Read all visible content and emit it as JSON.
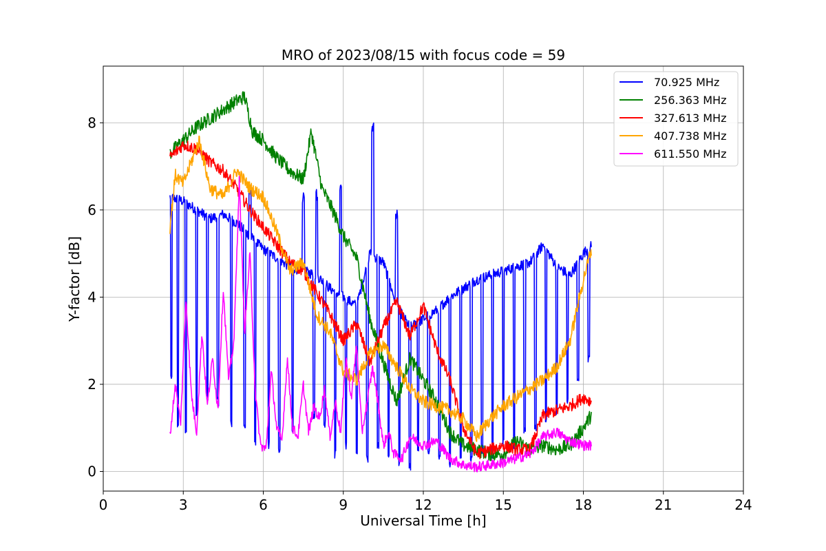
{
  "chart_data": {
    "type": "line",
    "title": "MRO of 2023/08/15 with focus code = 59",
    "xlabel": "Universal Time [h]",
    "ylabel": "Y-factor [dB]",
    "xlim": [
      0,
      24
    ],
    "ylim": [
      -0.45,
      9.3
    ],
    "xticks": [
      0,
      3,
      6,
      9,
      12,
      15,
      18,
      21,
      24
    ],
    "yticks": [
      0,
      2,
      4,
      6,
      8
    ],
    "grid": true,
    "legend_position": "top-right",
    "series": [
      {
        "name": "70.925 MHz",
        "color": "#0000ff",
        "x": [
          2.5,
          3.0,
          3.5,
          4.0,
          4.5,
          5.0,
          5.5,
          6.0,
          6.5,
          7.0,
          7.5,
          8.0,
          8.5,
          9.0,
          9.5,
          10.0,
          10.5,
          11.0,
          11.5,
          12.0,
          12.5,
          13.0,
          13.5,
          14.0,
          14.5,
          15.0,
          15.5,
          16.0,
          16.5,
          17.0,
          17.5,
          18.0,
          18.3
        ],
        "y": [
          6.3,
          6.2,
          6.0,
          5.8,
          5.9,
          5.7,
          5.4,
          5.1,
          4.9,
          4.7,
          4.6,
          4.5,
          4.2,
          4.0,
          3.8,
          5.0,
          4.8,
          3.8,
          3.3,
          3.5,
          3.7,
          4.0,
          4.2,
          4.4,
          4.5,
          4.6,
          4.7,
          4.8,
          5.2,
          4.7,
          4.5,
          5.0,
          5.2
        ],
        "dips": [
          2.55,
          2.8,
          3.1,
          3.5,
          3.9,
          4.3,
          4.8,
          5.3,
          5.7,
          6.2,
          6.6,
          7.1,
          7.5,
          7.9,
          8.3,
          8.7,
          9.1,
          9.5,
          9.9,
          10.3,
          10.7,
          11.1,
          11.5,
          11.8,
          12.2,
          12.6,
          13.0,
          13.4,
          13.8,
          14.2,
          14.6,
          15.0,
          15.4,
          15.8,
          16.2,
          16.6,
          17.0,
          17.4,
          17.8,
          18.2
        ],
        "dip_floor": [
          2.0,
          1.0,
          0.8,
          1.2,
          1.6,
          1.5,
          1.0,
          0.9,
          0.6,
          0.5,
          0.4,
          0.8,
          0.9,
          1.2,
          1.0,
          0.3,
          0.5,
          0.4,
          0.2,
          0.5,
          0.3,
          0.1,
          0.0,
          0.4,
          0.3,
          0.2,
          0.1,
          0.3,
          0.2,
          0.4,
          0.3,
          0.6,
          0.5,
          0.8,
          0.9,
          1.1,
          1.3,
          1.5,
          2.0,
          2.5
        ],
        "spikes": [
          {
            "x": 10.1,
            "y": 8.05
          },
          {
            "x": 8.0,
            "y": 6.5
          },
          {
            "x": 7.5,
            "y": 6.4
          },
          {
            "x": 8.9,
            "y": 6.7
          },
          {
            "x": 11.0,
            "y": 6.0
          },
          {
            "x": 5.5,
            "y": 6.6
          }
        ]
      },
      {
        "name": "256.363 MHz",
        "color": "#008000",
        "x": [
          2.5,
          3.0,
          3.5,
          4.0,
          4.5,
          5.0,
          5.3,
          5.6,
          6.0,
          6.5,
          7.0,
          7.5,
          7.8,
          8.2,
          8.6,
          9.0,
          9.5,
          10.0,
          10.5,
          11.0,
          11.5,
          12.0,
          12.5,
          13.0,
          13.5,
          14.0,
          14.5,
          15.0,
          15.5,
          16.0,
          16.5,
          17.0,
          17.5,
          18.0,
          18.3
        ],
        "y": [
          7.3,
          7.6,
          7.9,
          8.1,
          8.3,
          8.5,
          8.6,
          7.8,
          7.6,
          7.2,
          6.9,
          6.7,
          7.8,
          6.5,
          6.0,
          5.4,
          4.9,
          3.5,
          2.5,
          1.6,
          2.6,
          2.1,
          1.6,
          0.9,
          0.6,
          0.5,
          0.4,
          0.4,
          0.7,
          0.5,
          0.6,
          0.5,
          0.6,
          1.0,
          1.3
        ]
      },
      {
        "name": "327.613 MHz",
        "color": "#ff0000",
        "x": [
          2.5,
          3.0,
          3.5,
          4.0,
          4.5,
          5.0,
          5.5,
          6.0,
          6.5,
          7.0,
          7.5,
          8.0,
          8.5,
          9.0,
          9.5,
          10.0,
          10.5,
          11.0,
          11.5,
          12.0,
          12.5,
          13.0,
          13.5,
          14.0,
          14.5,
          15.0,
          15.5,
          16.0,
          16.5,
          17.0,
          17.5,
          18.0,
          18.3
        ],
        "y": [
          7.2,
          7.5,
          7.4,
          7.1,
          6.9,
          6.5,
          6.0,
          5.6,
          5.2,
          4.8,
          4.6,
          4.1,
          3.6,
          3.0,
          3.4,
          2.5,
          3.3,
          3.9,
          3.1,
          3.8,
          2.8,
          2.1,
          1.0,
          0.4,
          0.5,
          0.6,
          0.5,
          0.5,
          1.3,
          1.4,
          1.5,
          1.7,
          1.6
        ]
      },
      {
        "name": "407.738 MHz",
        "color": "#ffa500",
        "x": [
          2.5,
          2.7,
          3.0,
          3.3,
          3.6,
          4.0,
          4.5,
          5.0,
          5.5,
          6.0,
          6.5,
          7.0,
          7.5,
          8.0,
          8.5,
          9.0,
          9.5,
          10.0,
          10.5,
          11.0,
          11.5,
          12.0,
          12.5,
          13.0,
          13.5,
          14.0,
          14.5,
          15.0,
          15.5,
          16.0,
          16.5,
          17.0,
          17.5,
          18.0,
          18.3
        ],
        "y": [
          5.6,
          6.8,
          6.6,
          7.1,
          7.6,
          6.5,
          6.3,
          6.9,
          6.5,
          6.3,
          5.5,
          4.6,
          4.8,
          3.6,
          3.2,
          2.3,
          2.1,
          2.7,
          2.9,
          2.4,
          1.9,
          1.6,
          1.5,
          1.4,
          1.2,
          0.8,
          1.2,
          1.5,
          1.7,
          1.9,
          2.1,
          2.4,
          3.0,
          4.4,
          5.1
        ]
      },
      {
        "name": "611.550 MHz",
        "color": "#ff00ff",
        "x": [
          2.5,
          2.7,
          2.9,
          3.1,
          3.3,
          3.5,
          3.7,
          3.9,
          4.1,
          4.3,
          4.5,
          4.7,
          4.9,
          5.1,
          5.3,
          5.5,
          5.7,
          5.9,
          6.1,
          6.3,
          6.5,
          6.7,
          6.9,
          7.1,
          7.3,
          7.5,
          7.7,
          7.9,
          8.1,
          8.3,
          8.5,
          8.7,
          8.9,
          9.1,
          9.3,
          9.5,
          9.7,
          9.9,
          10.1,
          10.3,
          10.5,
          10.7,
          10.9,
          11.2,
          11.5,
          12.0,
          12.5,
          13.0,
          13.5,
          14.0,
          14.5,
          15.0,
          15.5,
          16.0,
          16.5,
          17.0,
          17.5,
          18.0,
          18.3
        ],
        "y": [
          0.8,
          2.0,
          1.1,
          4.0,
          1.8,
          0.9,
          3.2,
          1.5,
          2.6,
          1.4,
          4.2,
          2.1,
          3.0,
          6.7,
          3.2,
          5.0,
          1.8,
          0.6,
          0.5,
          2.3,
          1.0,
          0.7,
          2.6,
          1.0,
          0.8,
          2.0,
          0.9,
          1.5,
          1.2,
          1.9,
          0.8,
          1.6,
          0.9,
          2.6,
          1.7,
          2.9,
          0.9,
          1.6,
          2.4,
          1.6,
          0.6,
          0.9,
          0.4,
          0.3,
          0.8,
          0.6,
          0.7,
          0.3,
          0.15,
          0.1,
          0.15,
          0.2,
          0.3,
          0.4,
          0.8,
          0.9,
          0.7,
          0.6,
          0.6
        ]
      }
    ]
  }
}
